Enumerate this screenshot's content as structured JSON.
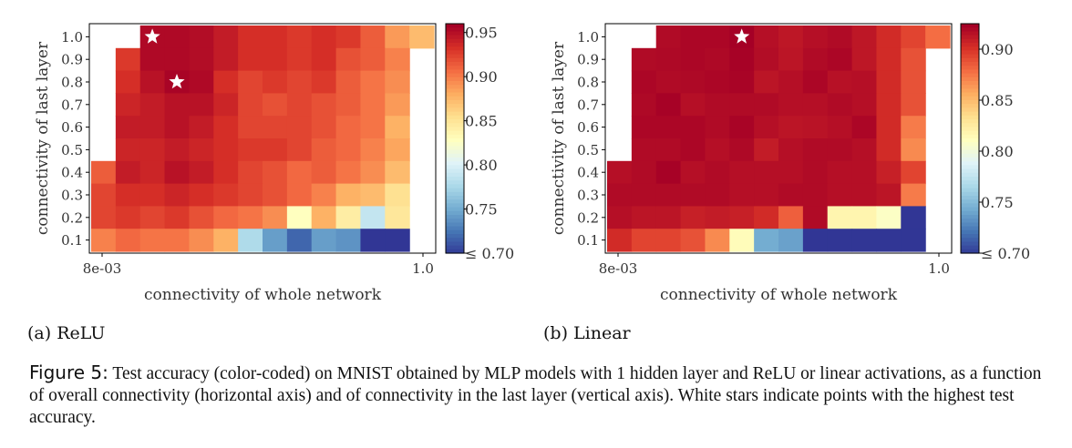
{
  "caption": {
    "label": "Figure 5:",
    "text": "Test accuracy (color-coded) on MNIST obtained by MLP models with 1 hidden layer and ReLU or linear activations, as a function of overall connectivity (horizontal axis) and of connectivity in the last layer (vertical axis). White stars indicate points with the highest test accuracy."
  },
  "subcaptions": [
    "(a) ReLU",
    "(b) Linear"
  ],
  "colors": {
    "colormap": "RdYlBu_r",
    "star": "#ffffff",
    "missing": "#ffffff"
  },
  "chart_data": [
    {
      "type": "heatmap",
      "title": "",
      "xlabel": "connectivity of whole network",
      "ylabel": "connectivity of last layer",
      "x_tick_labels": [
        "8e-03",
        "1.0"
      ],
      "y_tick_labels": [
        "0.1",
        "0.2",
        "0.3",
        "0.4",
        "0.5",
        "0.6",
        "0.7",
        "0.8",
        "0.9",
        "1.0"
      ],
      "colorbar": {
        "min": 0.7,
        "max": 0.96,
        "ticks": [
          0.95,
          0.9,
          0.85,
          0.8,
          0.75,
          0.7
        ],
        "tick_labels": [
          "0.95",
          "0.90",
          "0.85",
          "0.80",
          "0.75",
          "≤ 0.70"
        ]
      },
      "rows_top_to_bottom": [
        [
          null,
          null,
          0.955,
          0.955,
          0.953,
          0.945,
          0.935,
          0.935,
          0.93,
          0.935,
          0.93,
          0.915,
          0.89,
          0.875
        ],
        [
          null,
          0.93,
          0.955,
          0.955,
          0.953,
          0.945,
          0.935,
          0.935,
          0.93,
          0.935,
          0.92,
          0.915,
          0.9,
          null
        ],
        [
          null,
          0.935,
          0.95,
          0.958,
          0.955,
          0.935,
          0.925,
          0.93,
          0.925,
          0.93,
          0.915,
          0.905,
          0.895,
          null
        ],
        [
          null,
          0.94,
          0.945,
          0.95,
          0.95,
          0.94,
          0.925,
          0.92,
          0.925,
          0.92,
          0.915,
          0.905,
          0.89,
          null
        ],
        [
          null,
          0.945,
          0.945,
          0.95,
          0.945,
          0.935,
          0.925,
          0.925,
          0.925,
          0.92,
          0.91,
          0.905,
          0.88,
          null
        ],
        [
          null,
          0.94,
          0.94,
          0.945,
          0.94,
          0.935,
          0.93,
          0.93,
          0.925,
          0.915,
          0.91,
          0.9,
          0.885,
          null
        ],
        [
          0.915,
          0.945,
          0.94,
          0.95,
          0.945,
          0.935,
          0.925,
          0.92,
          0.91,
          0.915,
          0.905,
          0.895,
          0.875,
          null
        ],
        [
          0.925,
          0.935,
          0.935,
          0.94,
          0.935,
          0.93,
          0.925,
          0.92,
          0.91,
          0.9,
          0.88,
          0.875,
          0.855,
          null
        ],
        [
          0.925,
          0.93,
          0.925,
          0.93,
          0.92,
          0.91,
          0.905,
          0.895,
          0.83,
          0.88,
          0.845,
          0.79,
          0.85,
          null
        ],
        [
          0.9,
          0.91,
          0.905,
          0.905,
          0.895,
          0.88,
          0.78,
          0.745,
          0.72,
          0.745,
          0.74,
          0.7,
          0.7,
          null
        ]
      ],
      "best_points": [
        {
          "x_index": 2,
          "y": 1.0
        },
        {
          "x_index": 3,
          "y": 0.8
        }
      ]
    },
    {
      "type": "heatmap",
      "title": "",
      "xlabel": "connectivity of whole network",
      "ylabel": "connectivity of last layer",
      "x_tick_labels": [
        "8e-03",
        "1.0"
      ],
      "y_tick_labels": [
        "0.1",
        "0.2",
        "0.3",
        "0.4",
        "0.5",
        "0.6",
        "0.7",
        "0.8",
        "0.9",
        "1.0"
      ],
      "colorbar": {
        "min": 0.7,
        "max": 0.925,
        "ticks": [
          0.9,
          0.85,
          0.8,
          0.75,
          0.7
        ],
        "tick_labels": [
          "0.90",
          "0.85",
          "0.80",
          "0.75",
          "≤ 0.70"
        ]
      },
      "rows_top_to_bottom": [
        [
          null,
          null,
          0.92,
          0.922,
          0.922,
          0.925,
          0.918,
          0.914,
          0.918,
          0.92,
          0.914,
          0.905,
          0.895,
          0.88
        ],
        [
          null,
          0.92,
          0.921,
          0.922,
          0.921,
          0.924,
          0.919,
          0.915,
          0.92,
          0.922,
          0.914,
          0.905,
          0.89,
          null
        ],
        [
          null,
          0.922,
          0.92,
          0.921,
          0.922,
          0.923,
          0.915,
          0.918,
          0.922,
          0.917,
          0.918,
          0.905,
          0.89,
          null
        ],
        [
          null,
          0.921,
          0.924,
          0.918,
          0.92,
          0.92,
          0.92,
          0.918,
          0.918,
          0.92,
          0.918,
          0.905,
          0.89,
          null
        ],
        [
          null,
          0.922,
          0.922,
          0.922,
          0.92,
          0.923,
          0.918,
          0.915,
          0.916,
          0.918,
          0.922,
          0.905,
          0.875,
          null
        ],
        [
          null,
          0.92,
          0.92,
          0.922,
          0.918,
          0.921,
          0.912,
          0.918,
          0.92,
          0.92,
          0.918,
          0.905,
          0.87,
          null
        ],
        [
          0.918,
          0.92,
          0.924,
          0.918,
          0.92,
          0.918,
          0.918,
          0.918,
          0.92,
          0.918,
          0.918,
          0.91,
          0.895,
          null
        ],
        [
          0.92,
          0.92,
          0.92,
          0.92,
          0.92,
          0.918,
          0.918,
          0.92,
          0.92,
          0.918,
          0.918,
          0.915,
          0.875,
          null
        ],
        [
          0.918,
          0.915,
          0.915,
          0.91,
          0.912,
          0.91,
          0.905,
          0.885,
          0.92,
          0.82,
          0.82,
          0.81,
          0.7,
          null
        ],
        [
          0.905,
          0.895,
          0.895,
          0.89,
          0.87,
          0.815,
          0.745,
          0.74,
          0.7,
          0.7,
          0.7,
          0.7,
          0.7,
          null
        ]
      ],
      "best_points": [
        {
          "x_index": 5,
          "y": 1.0
        }
      ]
    }
  ]
}
